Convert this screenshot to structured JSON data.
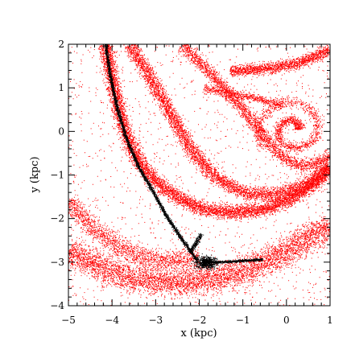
{
  "colors": {
    "particles": "#ff0000",
    "stream": "#000000",
    "axes": "#000000",
    "background": "#ffffff"
  },
  "chart_data": {
    "type": "scatter",
    "title": "",
    "xlabel": "x (kpc)",
    "ylabel": "y (kpc)",
    "xlim": [
      -5,
      1
    ],
    "ylim": [
      -4,
      2
    ],
    "xticks": [
      -5,
      -4,
      -3,
      -2,
      -1,
      0,
      1
    ],
    "yticks": [
      -4,
      -3,
      -2,
      -1,
      0,
      1,
      2
    ],
    "xtick_labels": [
      "−5",
      "−4",
      "−3",
      "−2",
      "−1",
      "0",
      "1"
    ],
    "ytick_labels": [
      "−4",
      "−3",
      "−2",
      "−1",
      "0",
      "1",
      "2"
    ],
    "grid": false,
    "legend": "none",
    "series": [
      {
        "color": "#ff0000",
        "structures": [
          {
            "kind": "band",
            "points": [
              [
                -5,
                -2.75
              ],
              [
                -4.2,
                -3.15
              ],
              [
                -3.4,
                -3.4
              ],
              [
                -2.6,
                -3.45
              ],
              [
                -1.8,
                -3.4
              ],
              [
                -1.0,
                -3.2
              ],
              [
                -0.2,
                -2.85
              ],
              [
                0.6,
                -2.4
              ],
              [
                1,
                -2.15
              ]
            ],
            "width": 0.32,
            "density": 0.9
          },
          {
            "kind": "band",
            "points": [
              [
                -5,
                -1.6
              ],
              [
                -4.5,
                -2.15
              ],
              [
                -4.0,
                -2.55
              ],
              [
                -3.5,
                -2.8
              ],
              [
                -3.0,
                -2.95
              ],
              [
                -2.5,
                -2.95
              ],
              [
                -2.0,
                -2.9
              ]
            ],
            "width": 0.22,
            "density": 0.55
          },
          {
            "kind": "band",
            "points": [
              [
                -4.15,
                2
              ],
              [
                -4.0,
                1.2
              ],
              [
                -3.8,
                0.3
              ],
              [
                -3.5,
                -0.5
              ],
              [
                -3.1,
                -1.05
              ],
              [
                -2.6,
                -1.45
              ],
              [
                -2.0,
                -1.75
              ],
              [
                -1.4,
                -1.85
              ],
              [
                -0.6,
                -1.8
              ],
              [
                0.1,
                -1.55
              ],
              [
                0.6,
                -1.2
              ],
              [
                1,
                -0.85
              ]
            ],
            "width": 0.16,
            "density": 0.9
          },
          {
            "kind": "band",
            "points": [
              [
                -3.6,
                2
              ],
              [
                -3.1,
                1.2
              ],
              [
                -2.6,
                0.3
              ],
              [
                -2.2,
                -0.4
              ],
              [
                -1.7,
                -1.0
              ],
              [
                -1.0,
                -1.4
              ],
              [
                -0.3,
                -1.45
              ],
              [
                0.4,
                -1.25
              ],
              [
                1,
                -0.8
              ]
            ],
            "width": 0.16,
            "density": 0.6
          },
          {
            "kind": "band",
            "points": [
              [
                -2.4,
                2
              ],
              [
                -1.6,
                1.2
              ],
              [
                -1.0,
                0.5
              ],
              [
                -0.6,
                0.0
              ],
              [
                -0.2,
                -0.5
              ],
              [
                0.3,
                -0.8
              ],
              [
                0.8,
                -0.7
              ],
              [
                1,
                -0.5
              ]
            ],
            "width": 0.14,
            "density": 0.45
          },
          {
            "kind": "band",
            "points": [
              [
                -1.3,
                1.4
              ],
              [
                -0.5,
                1.45
              ],
              [
                0.2,
                1.55
              ],
              [
                0.7,
                1.75
              ],
              [
                1,
                1.9
              ]
            ],
            "width": 0.13,
            "density": 0.65
          },
          {
            "kind": "spiral",
            "center": [
              0.15,
              0.05
            ],
            "r0": 0.12,
            "r1": 0.85,
            "turns": 1.6,
            "width": 0.06,
            "density": 0.9
          },
          {
            "kind": "band",
            "points": [
              [
                -1.9,
                1.0
              ],
              [
                -1.2,
                0.85
              ],
              [
                -0.6,
                0.75
              ],
              [
                -0.1,
                0.6
              ]
            ],
            "width": 0.1,
            "density": 0.35
          }
        ],
        "noise": 1600
      },
      {
        "color": "#000000",
        "structures": [
          {
            "kind": "line",
            "points": [
              [
                -4.15,
                2
              ],
              [
                -4.05,
                1.3
              ],
              [
                -3.9,
                0.6
              ],
              [
                -3.7,
                -0.1
              ],
              [
                -3.4,
                -0.8
              ],
              [
                -3.05,
                -1.4
              ],
              [
                -2.75,
                -1.95
              ],
              [
                -2.45,
                -2.4
              ],
              [
                -2.2,
                -2.75
              ],
              [
                -2.05,
                -2.95
              ]
            ],
            "width": 0.035
          },
          {
            "kind": "blob",
            "center": [
              -1.85,
              -3.0
            ],
            "rx": 0.25,
            "ry": 0.14,
            "count": 650
          },
          {
            "kind": "line",
            "points": [
              [
                -2.2,
                -2.75
              ],
              [
                -2.05,
                -2.5
              ],
              [
                -1.95,
                -2.35
              ]
            ],
            "width": 0.05
          },
          {
            "kind": "line",
            "points": [
              [
                -1.9,
                -3.0
              ],
              [
                -1.3,
                -2.98
              ],
              [
                -0.8,
                -2.95
              ],
              [
                -0.55,
                -2.93
              ]
            ],
            "width": 0.025
          }
        ]
      }
    ]
  }
}
